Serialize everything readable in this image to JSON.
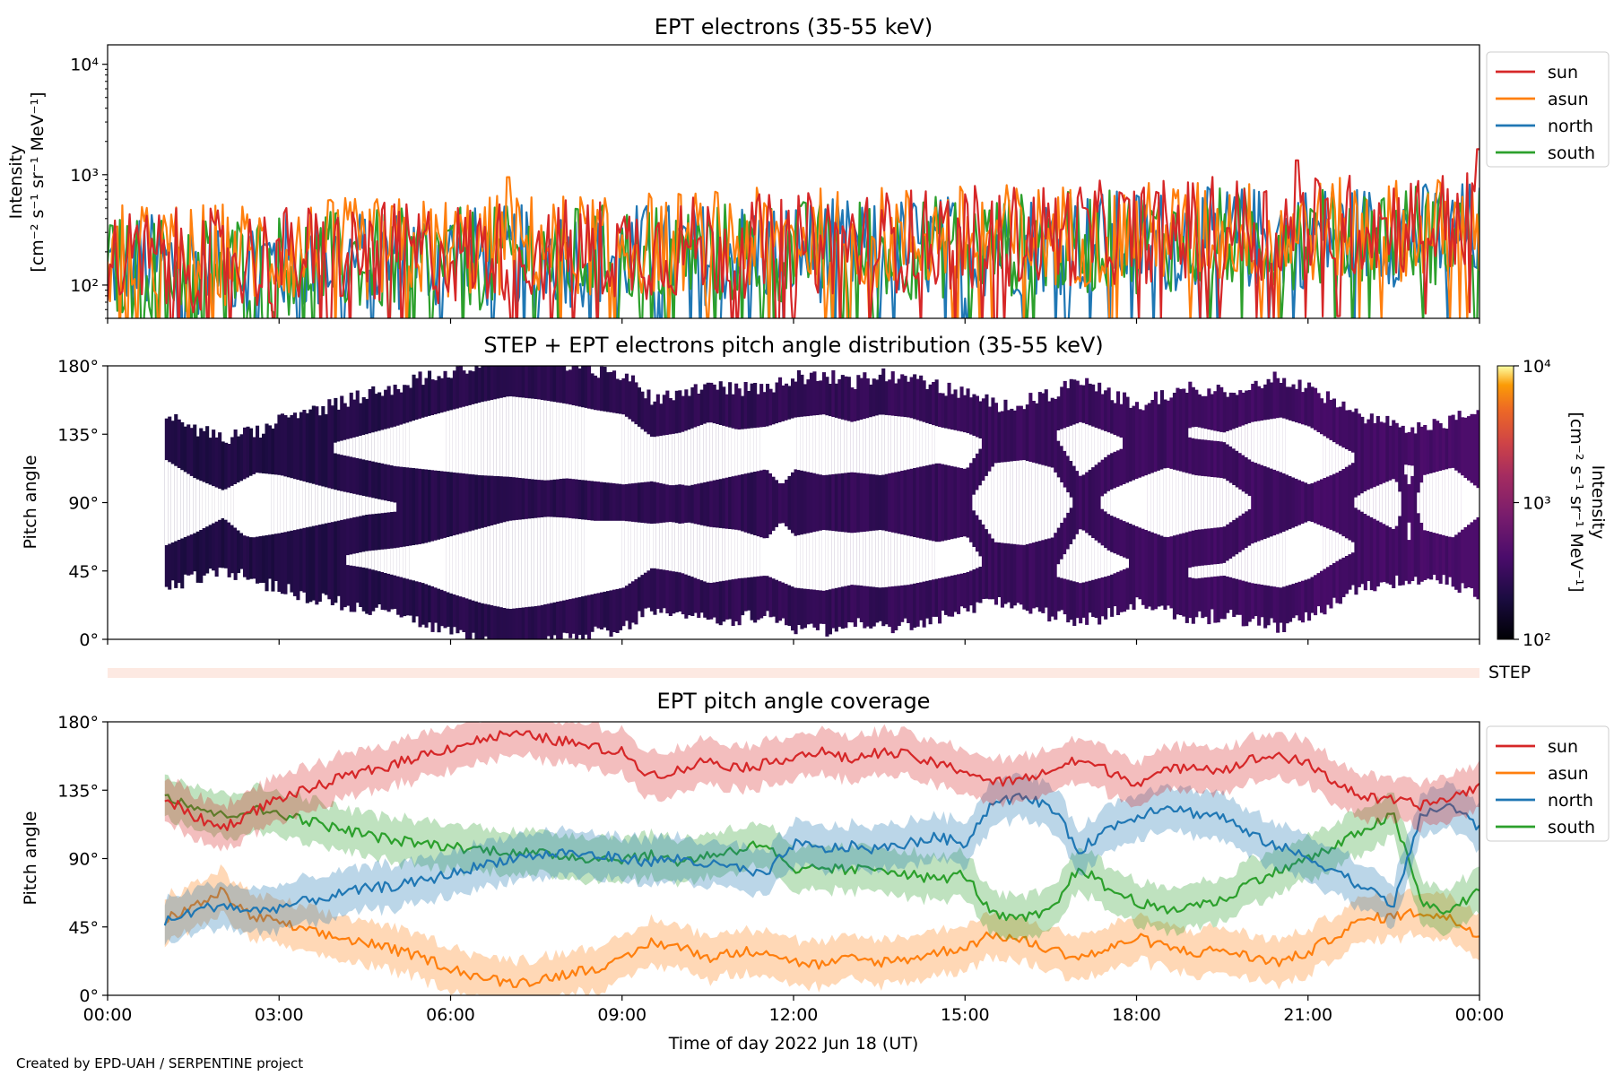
{
  "credit": "Created by EPD-UAH / SERPENTINE project",
  "colors": {
    "sun": "#d62728",
    "asun": "#ff7f0e",
    "north": "#1f77b4",
    "south": "#2ca02c"
  },
  "chart_data": [
    {
      "type": "line",
      "title": "EPT electrons (35-55 keV)",
      "ylabel_line1": "Intensity",
      "ylabel_line2": "[cm⁻² s⁻¹ sr⁻¹ MeV⁻¹]",
      "yscale": "log",
      "ylim": [
        50,
        15000
      ],
      "yticks": [
        "10²",
        "10³",
        "10⁴"
      ],
      "xlim_hours": [
        0,
        24
      ],
      "legend": "top-right outside",
      "series": [
        {
          "name": "sun",
          "color": "#d62728",
          "baseline": [
            [
              0,
              160
            ],
            [
              12,
              230
            ],
            [
              24,
              380
            ]
          ],
          "spikes": [
            [
              20.8,
              1350
            ],
            [
              24,
              1700
            ]
          ]
        },
        {
          "name": "asun",
          "color": "#ff7f0e",
          "baseline": [
            [
              0,
              180
            ],
            [
              12,
              260
            ],
            [
              24,
              330
            ]
          ],
          "spikes": [
            [
              7,
              950
            ]
          ]
        },
        {
          "name": "north",
          "color": "#1f77b4",
          "baseline": [
            [
              0,
              150
            ],
            [
              12,
              200
            ],
            [
              24,
              300
            ]
          ]
        },
        {
          "name": "south",
          "color": "#2ca02c",
          "baseline": [
            [
              0,
              140
            ],
            [
              12,
              200
            ],
            [
              24,
              300
            ]
          ]
        }
      ]
    },
    {
      "type": "heatmap",
      "title": "STEP + EPT electrons pitch angle distribution (35-55 keV)",
      "ylabel": "Pitch angle",
      "yticks": [
        "0°",
        "45°",
        "90°",
        "135°",
        "180°"
      ],
      "ylim": [
        0,
        180
      ],
      "colorbar": {
        "label_line1": "Intensity",
        "label_line2": "[cm⁻² s⁻¹ sr⁻¹ MeV⁻¹]",
        "ticks": [
          "10²",
          "10³",
          "10⁴"
        ],
        "range": [
          100,
          10000
        ],
        "scale": "log",
        "colormap": "inferno"
      },
      "data_start_hour": 1.0,
      "data_end_hour": 24.0
    },
    {
      "type": "bar",
      "label": "STEP"
    },
    {
      "type": "line",
      "title": "EPT pitch angle coverage",
      "ylabel": "Pitch angle",
      "xlabel": "Time of day 2022 Jun 18 (UT)",
      "xticks": [
        "00:00",
        "03:00",
        "06:00",
        "09:00",
        "12:00",
        "15:00",
        "18:00",
        "21:00",
        "00:00"
      ],
      "yticks": [
        "0°",
        "45°",
        "90°",
        "135°",
        "180°"
      ],
      "ylim": [
        0,
        180
      ],
      "xlim_hours": [
        0,
        24
      ],
      "legend": "top-right outside",
      "series": [
        {
          "name": "sun",
          "color": "#d62728",
          "x": [
            1.0,
            1.5,
            2.0,
            2.5,
            3.0,
            3.5,
            4.0,
            4.5,
            5.0,
            5.5,
            6.0,
            6.5,
            7.0,
            7.5,
            8.0,
            8.5,
            9.0,
            9.5,
            10.0,
            10.5,
            11.0,
            11.5,
            12.0,
            12.5,
            13.0,
            13.5,
            14.0,
            14.5,
            15.0,
            15.5,
            16.0,
            16.5,
            17.0,
            17.5,
            18.0,
            18.5,
            19.0,
            19.5,
            20.0,
            20.5,
            21.0,
            21.5,
            22.0,
            22.5,
            23.0,
            23.5,
            24.0
          ],
          "y": [
            130,
            118,
            110,
            120,
            130,
            135,
            142,
            147,
            152,
            158,
            163,
            168,
            172,
            170,
            167,
            163,
            160,
            145,
            148,
            155,
            150,
            152,
            158,
            160,
            155,
            160,
            158,
            152,
            148,
            140,
            142,
            148,
            155,
            148,
            140,
            147,
            152,
            148,
            155,
            158,
            152,
            140,
            130,
            128,
            125,
            130,
            138
          ]
        },
        {
          "name": "asun",
          "color": "#ff7f0e",
          "x": [
            1.0,
            1.5,
            2.0,
            2.5,
            3.0,
            3.5,
            4.0,
            4.5,
            5.0,
            5.5,
            6.0,
            6.5,
            7.0,
            7.5,
            8.0,
            8.5,
            9.0,
            9.5,
            10.0,
            10.5,
            11.0,
            11.5,
            12.0,
            12.5,
            13.0,
            13.5,
            14.0,
            14.5,
            15.0,
            15.5,
            16.0,
            16.5,
            17.0,
            17.5,
            18.0,
            18.5,
            19.0,
            19.5,
            20.0,
            20.5,
            21.0,
            21.5,
            22.0,
            22.5,
            23.0,
            23.5,
            24.0
          ],
          "y": [
            50,
            58,
            68,
            52,
            48,
            42,
            38,
            35,
            30,
            25,
            18,
            12,
            8,
            10,
            14,
            18,
            22,
            35,
            32,
            25,
            28,
            30,
            22,
            20,
            24,
            22,
            24,
            28,
            32,
            40,
            36,
            30,
            25,
            30,
            38,
            32,
            28,
            30,
            25,
            22,
            28,
            40,
            50,
            52,
            55,
            50,
            40
          ]
        },
        {
          "name": "north",
          "color": "#1f77b4",
          "x": [
            1.0,
            1.5,
            2.0,
            2.5,
            3.0,
            3.5,
            4.0,
            4.5,
            5.0,
            5.5,
            6.0,
            6.5,
            7.0,
            7.5,
            8.0,
            8.5,
            9.0,
            9.5,
            10.0,
            10.5,
            11.0,
            11.5,
            12.0,
            12.5,
            13.0,
            13.5,
            14.0,
            14.5,
            15.0,
            15.5,
            16.0,
            16.5,
            17.0,
            17.5,
            18.0,
            18.5,
            19.0,
            19.5,
            20.0,
            20.5,
            21.0,
            21.5,
            22.0,
            22.5,
            23.0,
            23.5,
            24.0
          ],
          "y": [
            48,
            55,
            60,
            55,
            58,
            62,
            66,
            70,
            72,
            75,
            80,
            85,
            90,
            92,
            94,
            92,
            90,
            88,
            90,
            86,
            84,
            78,
            100,
            96,
            98,
            96,
            100,
            104,
            100,
            128,
            130,
            125,
            95,
            110,
            118,
            125,
            120,
            118,
            105,
            98,
            90,
            82,
            70,
            60,
            120,
            125,
            110
          ]
        },
        {
          "name": "south",
          "color": "#2ca02c",
          "x": [
            1.0,
            1.5,
            2.0,
            2.5,
            3.0,
            3.5,
            4.0,
            4.5,
            5.0,
            5.5,
            6.0,
            6.5,
            7.0,
            7.5,
            8.0,
            8.5,
            9.0,
            9.5,
            10.0,
            10.5,
            11.0,
            11.5,
            12.0,
            12.5,
            13.0,
            13.5,
            14.0,
            14.5,
            15.0,
            15.5,
            16.0,
            16.5,
            17.0,
            17.5,
            18.0,
            18.5,
            19.0,
            19.5,
            20.0,
            20.5,
            21.0,
            21.5,
            22.0,
            22.5,
            23.0,
            23.5,
            24.0
          ],
          "y": [
            132,
            125,
            118,
            122,
            120,
            115,
            110,
            106,
            102,
            100,
            98,
            96,
            95,
            93,
            92,
            90,
            90,
            92,
            88,
            92,
            96,
            100,
            80,
            84,
            82,
            84,
            80,
            76,
            80,
            52,
            50,
            55,
            85,
            70,
            62,
            55,
            60,
            62,
            75,
            82,
            90,
            98,
            110,
            118,
            60,
            55,
            70
          ]
        }
      ]
    }
  ]
}
